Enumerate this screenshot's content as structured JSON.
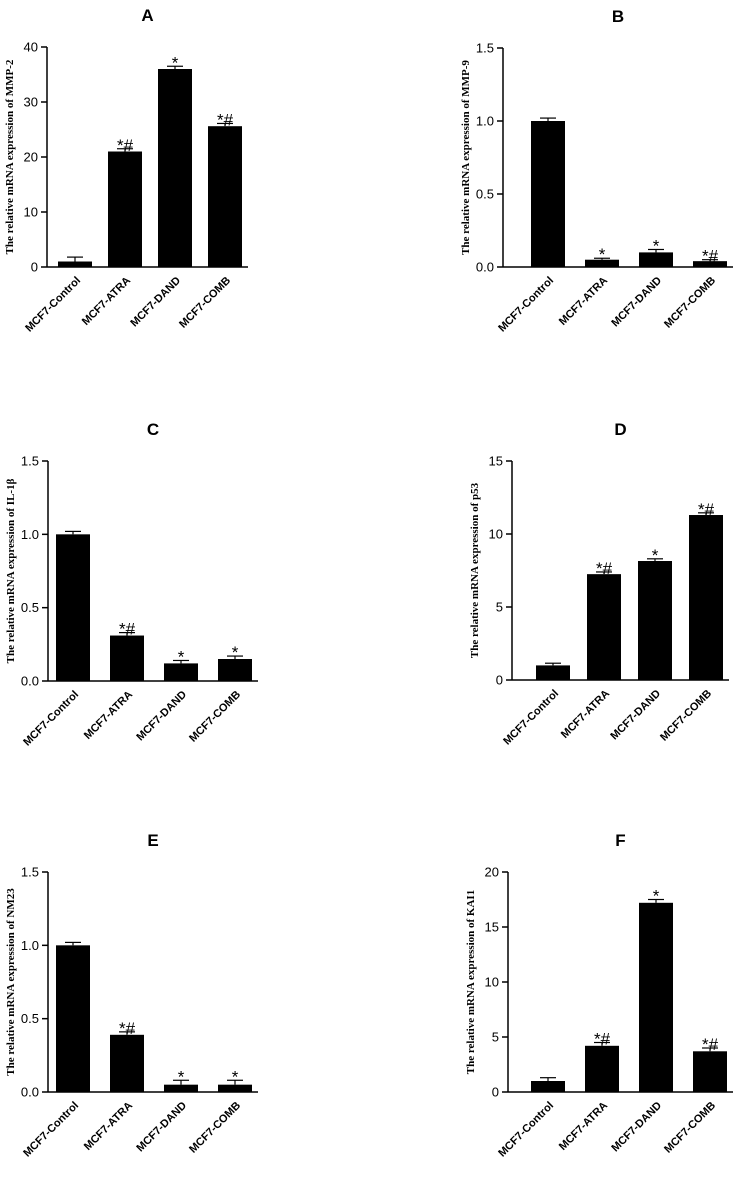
{
  "chart_data": [
    {
      "panel": "A",
      "type": "bar",
      "categories": [
        "MCF7-Control",
        "MCF7-ATRA",
        "MCF7-DAND",
        "MCF7-COMB"
      ],
      "values": [
        1.0,
        21.0,
        36.0,
        25.6
      ],
      "errors": [
        0.8,
        0.5,
        0.5,
        0.5
      ],
      "significance": [
        "",
        "*#",
        "*",
        "*#"
      ],
      "ylabel": "The relative mRNA expression of MMP-2",
      "ylim": [
        0,
        40
      ],
      "yticks": [
        0,
        10,
        20,
        30,
        40
      ],
      "ytick_labels": [
        "0",
        "10",
        "20",
        "30",
        "40"
      ],
      "color": "#000000"
    },
    {
      "panel": "B",
      "type": "bar",
      "categories": [
        "MCF7-Control",
        "MCF7-ATRA",
        "MCF7-DAND",
        "MCF7-COMB"
      ],
      "values": [
        1.0,
        0.05,
        0.1,
        0.04
      ],
      "errors": [
        0.02,
        0.01,
        0.02,
        0.01
      ],
      "significance": [
        "",
        "*",
        "*",
        "*#"
      ],
      "ylabel": "The relative mRNA expression of MMP-9",
      "ylim": [
        0,
        1.5
      ],
      "yticks": [
        0,
        0.5,
        1.0,
        1.5
      ],
      "ytick_labels": [
        "0.0",
        "0.5",
        "1.0",
        "1.5"
      ],
      "color": "#000000"
    },
    {
      "panel": "C",
      "type": "bar",
      "categories": [
        "MCF7-Control",
        "MCF7-ATRA",
        "MCF7-DAND",
        "MCF7-COMB"
      ],
      "values": [
        1.0,
        0.31,
        0.12,
        0.15
      ],
      "errors": [
        0.02,
        0.02,
        0.02,
        0.02
      ],
      "significance": [
        "",
        "*#",
        "*",
        "*"
      ],
      "ylabel": "The relative mRNA expression of IL-1β",
      "ylim": [
        0,
        1.5
      ],
      "yticks": [
        0,
        0.5,
        1.0,
        1.5
      ],
      "ytick_labels": [
        "0.0",
        "0.5",
        "1.0",
        "1.5"
      ],
      "color": "#000000"
    },
    {
      "panel": "D",
      "type": "bar",
      "categories": [
        "MCF7-Control",
        "MCF7-ATRA",
        "MCF7-DAND",
        "MCF7-COMB"
      ],
      "values": [
        1.0,
        7.25,
        8.15,
        11.3
      ],
      "errors": [
        0.15,
        0.15,
        0.15,
        0.15
      ],
      "significance": [
        "",
        "*#",
        "*",
        "*#"
      ],
      "ylabel": "The relative mRNA expression of p53",
      "ylim": [
        0,
        15
      ],
      "yticks": [
        0,
        5,
        10,
        15
      ],
      "ytick_labels": [
        "0",
        "5",
        "10",
        "15"
      ],
      "color": "#000000"
    },
    {
      "panel": "E",
      "type": "bar",
      "categories": [
        "MCF7-Control",
        "MCF7-ATRA",
        "MCF7-DAND",
        "MCF7-COMB"
      ],
      "values": [
        1.0,
        0.39,
        0.05,
        0.05
      ],
      "errors": [
        0.02,
        0.02,
        0.03,
        0.03
      ],
      "significance": [
        "",
        "*#",
        "*",
        "*"
      ],
      "ylabel": "The relative mRNA expression of NM23",
      "ylim": [
        0,
        1.5
      ],
      "yticks": [
        0,
        0.5,
        1.0,
        1.5
      ],
      "ytick_labels": [
        "0.0",
        "0.5",
        "1.0",
        "1.5"
      ],
      "color": "#000000"
    },
    {
      "panel": "F",
      "type": "bar",
      "categories": [
        "MCF7-Control",
        "MCF7-ATRA",
        "MCF7-DAND",
        "MCF7-COMB"
      ],
      "values": [
        1.0,
        4.2,
        17.2,
        3.7
      ],
      "errors": [
        0.3,
        0.3,
        0.3,
        0.3
      ],
      "significance": [
        "",
        "*#",
        "*",
        "*#"
      ],
      "ylabel": "The relative mRNA expression of KAI1",
      "ylim": [
        0,
        20
      ],
      "yticks": [
        0,
        5,
        10,
        15,
        20
      ],
      "ytick_labels": [
        "0",
        "5",
        "10",
        "15",
        "20"
      ],
      "color": "#000000"
    }
  ]
}
